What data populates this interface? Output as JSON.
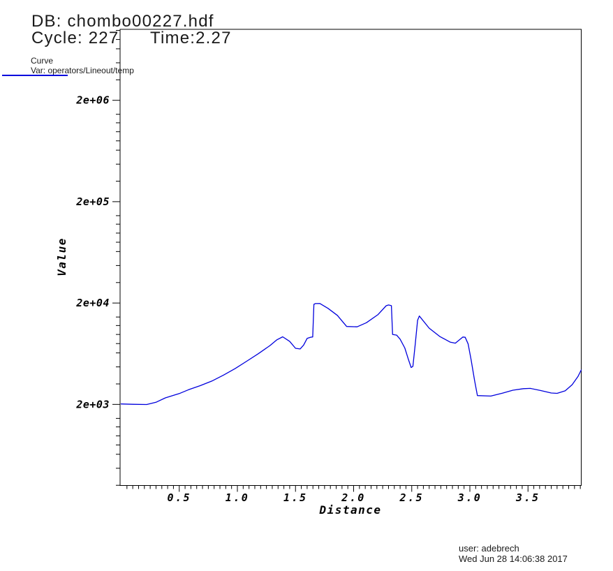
{
  "header": {
    "db": "DB: chombo00227.hdf",
    "cycle": "Cycle: 227",
    "time": "Time:2.27"
  },
  "legend": {
    "title": "Curve",
    "variable": "Var: operators/Lineout/temp",
    "swatch_color": "#0000dd"
  },
  "footer": {
    "user": "user: adebrech",
    "timestamp": "Wed Jun 28 14:06:38 2017"
  },
  "chart_data": {
    "type": "line",
    "title": "",
    "xlabel": "Distance",
    "ylabel": "Value",
    "grid": false,
    "legend_position": "top-left-outside",
    "x_axis": {
      "scale": "linear",
      "min": 0,
      "max": 3.958,
      "major_ticks": [
        0.5,
        1.0,
        1.5,
        2.0,
        2.5,
        3.0,
        3.5
      ],
      "minor_tick_step": 0.05
    },
    "y_axis": {
      "scale": "log",
      "min": 317,
      "max": 10030000,
      "major_ticks": [
        {
          "value": 2000,
          "label": "2e+03"
        },
        {
          "value": 20000,
          "label": "2e+04"
        },
        {
          "value": 200000,
          "label": "2e+05"
        },
        {
          "value": 2000000,
          "label": "2e+06"
        }
      ],
      "minor_decade_anchors": [
        2000,
        20000,
        200000,
        2000000,
        20000000
      ],
      "minor_fractions_below_anchor": [
        0.138,
        0.222,
        0.31,
        0.4,
        0.492,
        0.63,
        0.798
      ]
    },
    "series": [
      {
        "name": "operators/Lineout/temp",
        "color": "#0000dd",
        "points": [
          [
            0.0,
            2020
          ],
          [
            0.1,
            2005
          ],
          [
            0.22,
            1995
          ],
          [
            0.3,
            2100
          ],
          [
            0.38,
            2320
          ],
          [
            0.5,
            2560
          ],
          [
            0.58,
            2790
          ],
          [
            0.68,
            3060
          ],
          [
            0.78,
            3400
          ],
          [
            0.88,
            3890
          ],
          [
            0.98,
            4510
          ],
          [
            1.08,
            5330
          ],
          [
            1.18,
            6330
          ],
          [
            1.28,
            7600
          ],
          [
            1.34,
            8680
          ],
          [
            1.39,
            9280
          ],
          [
            1.45,
            8370
          ],
          [
            1.5,
            7150
          ],
          [
            1.54,
            7050
          ],
          [
            1.57,
            7700
          ],
          [
            1.6,
            8950
          ],
          [
            1.63,
            9200
          ],
          [
            1.648,
            9250
          ],
          [
            1.658,
            19400
          ],
          [
            1.67,
            19750
          ],
          [
            1.71,
            19800
          ],
          [
            1.78,
            17700
          ],
          [
            1.86,
            15100
          ],
          [
            1.94,
            11750
          ],
          [
            2.03,
            11650
          ],
          [
            2.11,
            12800
          ],
          [
            2.21,
            15400
          ],
          [
            2.28,
            18800
          ],
          [
            2.3,
            19150
          ],
          [
            2.325,
            18850
          ],
          [
            2.335,
            9800
          ],
          [
            2.37,
            9650
          ],
          [
            2.4,
            8800
          ],
          [
            2.44,
            7200
          ],
          [
            2.47,
            5600
          ],
          [
            2.495,
            4620
          ],
          [
            2.51,
            4750
          ],
          [
            2.53,
            7800
          ],
          [
            2.55,
            13500
          ],
          [
            2.565,
            14900
          ],
          [
            2.65,
            11300
          ],
          [
            2.74,
            9370
          ],
          [
            2.83,
            8230
          ],
          [
            2.875,
            8040
          ],
          [
            2.91,
            8660
          ],
          [
            2.94,
            9240
          ],
          [
            2.96,
            9180
          ],
          [
            2.985,
            7900
          ],
          [
            3.01,
            5550
          ],
          [
            3.04,
            3450
          ],
          [
            3.065,
            2445
          ],
          [
            3.18,
            2415
          ],
          [
            3.28,
            2585
          ],
          [
            3.37,
            2760
          ],
          [
            3.46,
            2860
          ],
          [
            3.52,
            2875
          ],
          [
            3.61,
            2740
          ],
          [
            3.7,
            2590
          ],
          [
            3.75,
            2570
          ],
          [
            3.82,
            2720
          ],
          [
            3.88,
            3130
          ],
          [
            3.93,
            3770
          ],
          [
            3.958,
            4370
          ]
        ]
      }
    ]
  }
}
